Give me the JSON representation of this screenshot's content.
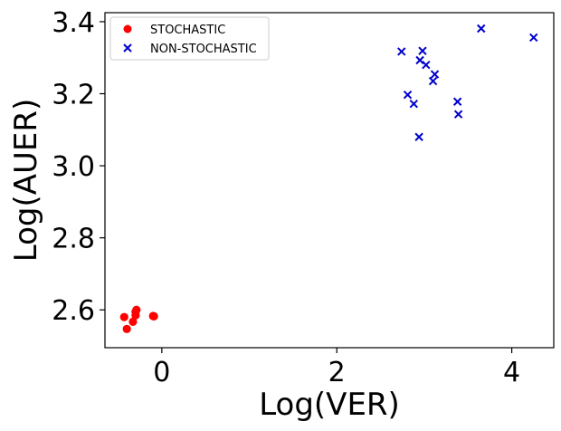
{
  "chart_data": {
    "type": "scatter",
    "xlabel": "Log(VER)",
    "ylabel": "Log(AUER)",
    "xlim": [
      -0.65,
      4.48
    ],
    "ylim": [
      2.495,
      3.425
    ],
    "xticks": [
      {
        "v": 0,
        "label": "0"
      },
      {
        "v": 2,
        "label": "2"
      },
      {
        "v": 4,
        "label": "4"
      }
    ],
    "yticks": [
      {
        "v": 2.6,
        "label": "2.6"
      },
      {
        "v": 2.8,
        "label": "2.8"
      },
      {
        "v": 3.0,
        "label": "3.0"
      },
      {
        "v": 3.2,
        "label": "3.2"
      },
      {
        "v": 3.4,
        "label": "3.4"
      }
    ],
    "legend_position": "upper-left",
    "series": [
      {
        "name": "STOCHASTIC",
        "marker": "circle",
        "color": "#ff0000",
        "points": [
          [
            -0.43,
            2.58
          ],
          [
            -0.4,
            2.547
          ],
          [
            -0.33,
            2.567
          ],
          [
            -0.3,
            2.585
          ],
          [
            -0.29,
            2.6
          ],
          [
            -0.3,
            2.595
          ],
          [
            -0.09,
            2.582
          ],
          [
            -0.1,
            2.583
          ]
        ]
      },
      {
        "name": "NON-STOCHASTIC",
        "marker": "x",
        "color": "#0000cc",
        "points": [
          [
            2.74,
            3.317
          ],
          [
            2.81,
            3.197
          ],
          [
            2.88,
            3.172
          ],
          [
            2.94,
            3.08
          ],
          [
            2.95,
            3.293
          ],
          [
            2.98,
            3.319
          ],
          [
            3.02,
            3.28
          ],
          [
            3.1,
            3.235
          ],
          [
            3.12,
            3.254
          ],
          [
            3.38,
            3.178
          ],
          [
            3.39,
            3.143
          ],
          [
            3.65,
            3.381
          ],
          [
            4.25,
            3.356
          ]
        ]
      }
    ]
  }
}
